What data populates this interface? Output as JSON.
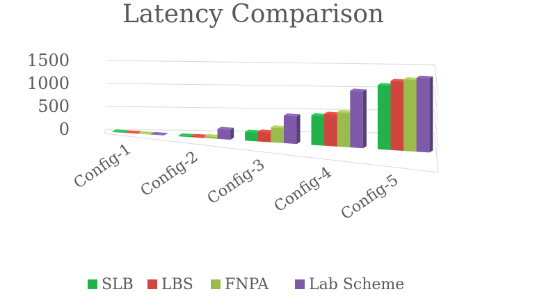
{
  "chart_data": {
    "type": "bar",
    "style": "3d-perspective clustered column",
    "title": "Latency Comparison",
    "xlabel": "",
    "ylabel": "",
    "categories": [
      "Config-1",
      "Config-2",
      "Config-3",
      "Config-4",
      "Config-5"
    ],
    "series": [
      {
        "name": "SLB",
        "color": "#22b24c",
        "values": [
          10,
          20,
          180,
          600,
          1300
        ]
      },
      {
        "name": "LBS",
        "color": "#d0463e",
        "values": [
          10,
          25,
          200,
          650,
          1400
        ]
      },
      {
        "name": "FNPA",
        "color": "#9bbb4f",
        "values": [
          10,
          35,
          300,
          700,
          1450
        ]
      },
      {
        "name": "Lab Scheme",
        "color": "#7e5aa8",
        "values": [
          10,
          200,
          560,
          1150,
          1500
        ]
      }
    ],
    "y_ticks": [
      "1500",
      "1000",
      "500",
      "0"
    ],
    "ylim": [
      0,
      1500
    ],
    "grid": true,
    "legend_position": "bottom"
  }
}
